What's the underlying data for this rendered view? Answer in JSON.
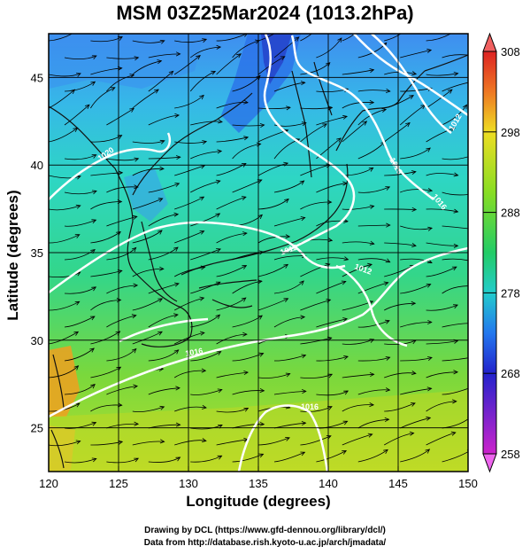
{
  "title": "MSM 03Z25Mar2024 (1013.2hPa)",
  "x_axis": {
    "label": "Longitude (degrees)",
    "range": [
      120,
      150
    ],
    "ticks": [
      120,
      125,
      130,
      135,
      140,
      145,
      150
    ]
  },
  "y_axis": {
    "label": "Latitude  (degrees)",
    "range": [
      22.5,
      47.5
    ],
    "ticks": [
      25,
      30,
      35,
      40,
      45
    ]
  },
  "colorbar": {
    "range": [
      258,
      308
    ],
    "ticks": [
      258,
      268,
      278,
      288,
      298,
      308
    ],
    "colors": [
      "#cc22cc",
      "#2222cc",
      "#2277ee",
      "#22cccc",
      "#22cc66",
      "#88dd22",
      "#eedd22",
      "#ee7722",
      "#dd2222"
    ]
  },
  "contour_labels": [
    "1012",
    "1016",
    "1016",
    "1012",
    "1020",
    "1016",
    "1012",
    "1016"
  ],
  "credits": {
    "line1": "Drawing by DCL (https://www.gfd-dennou.org/library/dcl/)",
    "line2": "Data from http://database.rish.kyoto-u.ac.jp/arch/jmadata/"
  }
}
